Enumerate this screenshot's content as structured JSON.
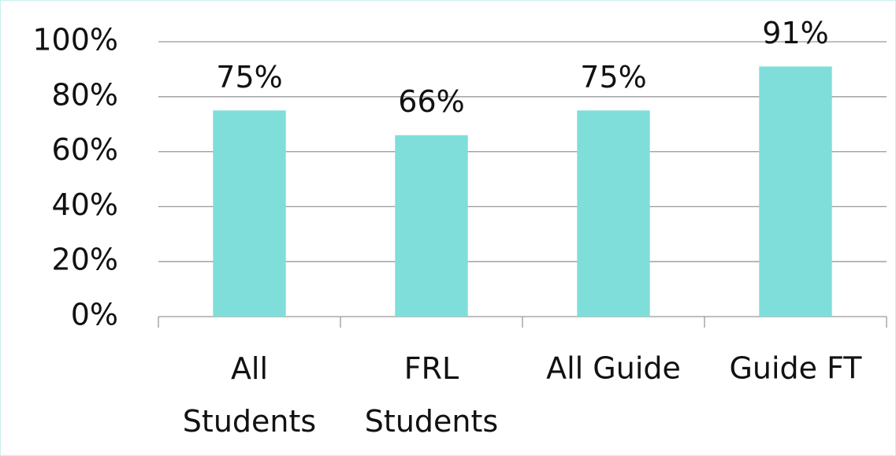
{
  "chart_data": {
    "type": "bar",
    "categories": [
      "All\nStudents",
      "FRL\nStudents",
      "All Guide",
      "Guide FT"
    ],
    "values": [
      75,
      66,
      75,
      91
    ],
    "value_labels": [
      "75%",
      "66%",
      "75%",
      "91%"
    ],
    "color": "#7fded9",
    "ylim": [
      0,
      100
    ],
    "yticks": [
      {
        "value": 0,
        "label": "0%"
      },
      {
        "value": 20,
        "label": "20%"
      },
      {
        "value": 40,
        "label": "40%"
      },
      {
        "value": 60,
        "label": "60%"
      },
      {
        "value": 80,
        "label": "80%"
      },
      {
        "value": 100,
        "label": "100%"
      }
    ],
    "grid": true
  }
}
